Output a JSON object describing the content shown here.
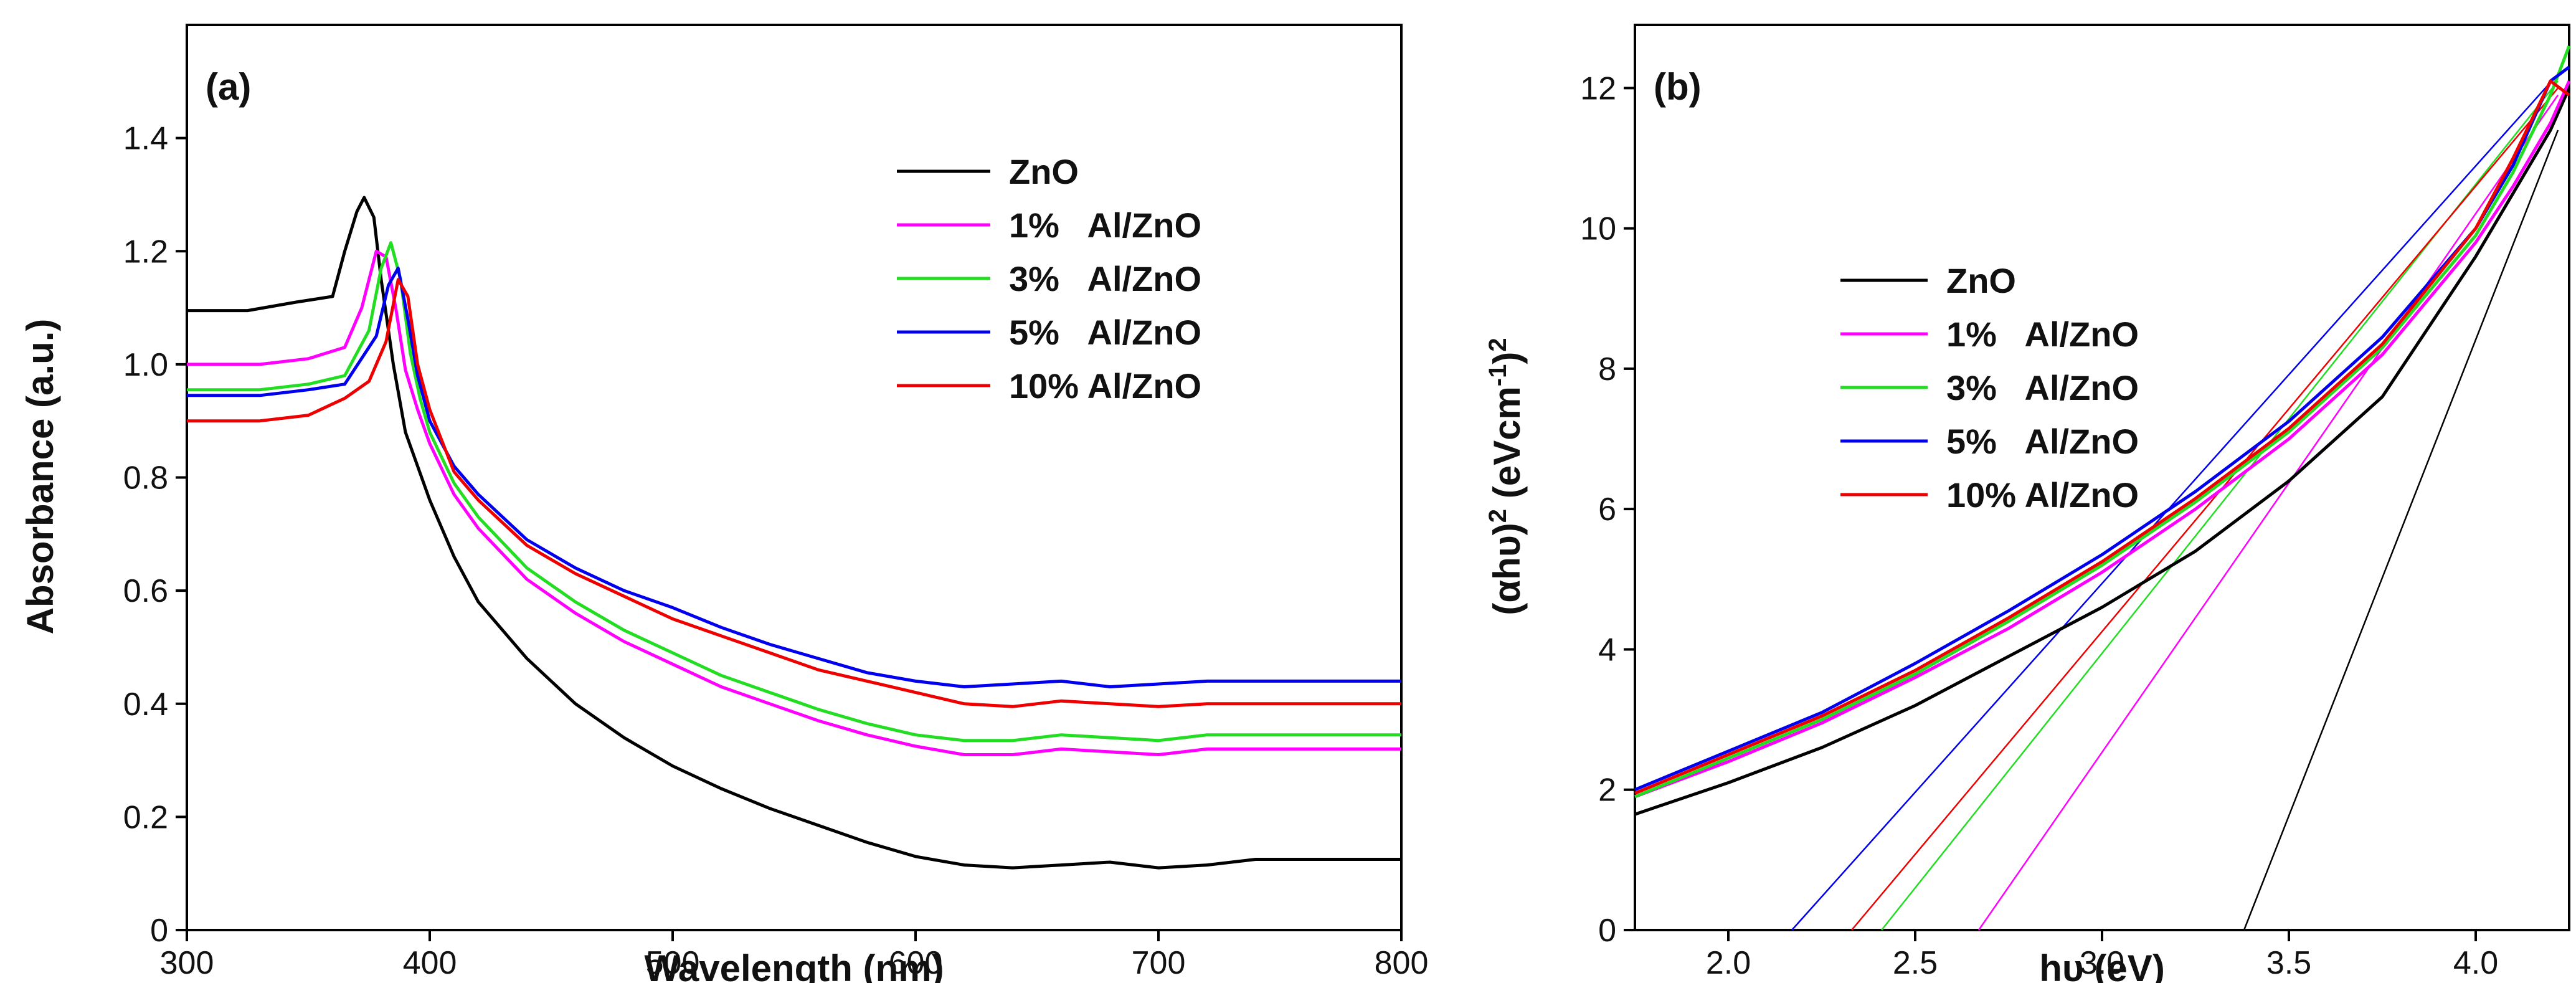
{
  "chart_data": [
    {
      "type": "line",
      "panel_label": "(a)",
      "xlabel": "Wavelength (nm)",
      "ylabel": "Absorbance (a.u.)",
      "xlim": [
        300,
        800
      ],
      "ylim": [
        0,
        1.6
      ],
      "xticks": [
        300,
        400,
        500,
        600,
        700,
        800
      ],
      "xtick_labels": [
        "300",
        "400",
        "500",
        "600",
        "700",
        "800"
      ],
      "yticks": [
        0,
        0.2,
        0.4,
        0.6,
        0.8,
        1.0,
        1.2,
        1.4
      ],
      "ytick_labels": [
        "0",
        "0.2",
        "0.4",
        "0.6",
        "0.8",
        "1.0",
        "1.2",
        "1.4"
      ],
      "legend_position": "top-right",
      "series": [
        {
          "name": "ZnO",
          "color": "#000000",
          "x": [
            300,
            325,
            345,
            360,
            365,
            370,
            373,
            377,
            380,
            385,
            390,
            395,
            400,
            410,
            420,
            440,
            460,
            480,
            500,
            520,
            540,
            560,
            580,
            600,
            620,
            640,
            660,
            680,
            700,
            720,
            740,
            760,
            780,
            800
          ],
          "y": [
            1.095,
            1.095,
            1.11,
            1.12,
            1.2,
            1.27,
            1.295,
            1.26,
            1.15,
            1.0,
            0.88,
            0.82,
            0.76,
            0.66,
            0.58,
            0.48,
            0.4,
            0.34,
            0.29,
            0.25,
            0.215,
            0.185,
            0.155,
            0.13,
            0.115,
            0.11,
            0.115,
            0.12,
            0.11,
            0.115,
            0.125,
            0.125,
            0.125,
            0.125
          ]
        },
        {
          "name": "1%   Al/ZnO",
          "color": "#ff00ff",
          "x": [
            300,
            330,
            350,
            365,
            372,
            378,
            382,
            386,
            390,
            395,
            400,
            410,
            420,
            440,
            460,
            480,
            500,
            520,
            540,
            560,
            580,
            600,
            620,
            640,
            660,
            680,
            700,
            720,
            740,
            760,
            780,
            800
          ],
          "y": [
            1.0,
            1.0,
            1.01,
            1.03,
            1.1,
            1.2,
            1.19,
            1.1,
            0.99,
            0.92,
            0.86,
            0.77,
            0.71,
            0.62,
            0.56,
            0.51,
            0.47,
            0.43,
            0.4,
            0.37,
            0.345,
            0.325,
            0.31,
            0.31,
            0.32,
            0.315,
            0.31,
            0.32,
            0.32,
            0.32,
            0.32,
            0.32
          ]
        },
        {
          "name": "3%   Al/ZnO",
          "color": "#22dd22",
          "x": [
            300,
            330,
            350,
            365,
            375,
            380,
            384,
            388,
            392,
            396,
            400,
            410,
            420,
            440,
            460,
            480,
            500,
            520,
            540,
            560,
            580,
            600,
            620,
            640,
            660,
            680,
            700,
            720,
            740,
            760,
            780,
            800
          ],
          "y": [
            0.955,
            0.955,
            0.965,
            0.98,
            1.06,
            1.17,
            1.215,
            1.15,
            1.02,
            0.94,
            0.88,
            0.79,
            0.73,
            0.64,
            0.58,
            0.53,
            0.49,
            0.45,
            0.42,
            0.39,
            0.365,
            0.345,
            0.335,
            0.335,
            0.345,
            0.34,
            0.335,
            0.345,
            0.345,
            0.345,
            0.345,
            0.345
          ]
        },
        {
          "name": "5%   Al/ZnO",
          "color": "#0000ee",
          "x": [
            300,
            330,
            350,
            365,
            378,
            383,
            387,
            391,
            395,
            400,
            410,
            420,
            440,
            460,
            480,
            500,
            520,
            540,
            560,
            580,
            600,
            620,
            640,
            660,
            680,
            700,
            720,
            740,
            760,
            780,
            800
          ],
          "y": [
            0.945,
            0.945,
            0.955,
            0.965,
            1.05,
            1.14,
            1.17,
            1.08,
            0.98,
            0.9,
            0.82,
            0.77,
            0.69,
            0.64,
            0.6,
            0.57,
            0.535,
            0.505,
            0.48,
            0.455,
            0.44,
            0.43,
            0.435,
            0.44,
            0.43,
            0.435,
            0.44,
            0.44,
            0.44,
            0.44,
            0.44
          ]
        },
        {
          "name": "10% Al/ZnO",
          "color": "#ee0000",
          "x": [
            300,
            330,
            350,
            365,
            375,
            382,
            387,
            391,
            395,
            400,
            410,
            420,
            440,
            460,
            480,
            500,
            520,
            540,
            560,
            580,
            600,
            620,
            640,
            660,
            680,
            700,
            720,
            740,
            760,
            780,
            800
          ],
          "y": [
            0.9,
            0.9,
            0.91,
            0.94,
            0.97,
            1.04,
            1.15,
            1.12,
            1.0,
            0.92,
            0.81,
            0.76,
            0.68,
            0.63,
            0.59,
            0.55,
            0.52,
            0.49,
            0.46,
            0.44,
            0.42,
            0.4,
            0.395,
            0.405,
            0.4,
            0.395,
            0.4,
            0.4,
            0.4,
            0.4,
            0.4
          ]
        }
      ]
    },
    {
      "type": "line",
      "panel_label": "(b)",
      "xlabel": "hυ (eV)",
      "ylabel_parts": [
        "(αhυ)",
        "2",
        " (eVcm",
        "-1",
        ")",
        "2"
      ],
      "xlim": [
        1.75,
        4.25
      ],
      "ylim": [
        0,
        12.9
      ],
      "xticks": [
        2.0,
        2.5,
        3.0,
        3.5,
        4.0
      ],
      "xtick_labels": [
        "2.0",
        "2.5",
        "3.0",
        "3.5",
        "4.0"
      ],
      "yticks": [
        0,
        2,
        4,
        6,
        8,
        10,
        12
      ],
      "ytick_labels": [
        "0",
        "2",
        "4",
        "6",
        "8",
        "10",
        "12"
      ],
      "legend_position": "top-left",
      "series": [
        {
          "name": "ZnO",
          "color": "#000000",
          "x": [
            1.75,
            2.0,
            2.25,
            2.5,
            2.75,
            3.0,
            3.25,
            3.5,
            3.75,
            4.0,
            4.1,
            4.2,
            4.25
          ],
          "y": [
            1.65,
            2.1,
            2.6,
            3.2,
            3.9,
            4.6,
            5.4,
            6.4,
            7.6,
            9.6,
            10.5,
            11.4,
            12.0
          ]
        },
        {
          "name": "1%   Al/ZnO",
          "color": "#ff00ff",
          "x": [
            1.75,
            2.0,
            2.25,
            2.5,
            2.75,
            3.0,
            3.25,
            3.5,
            3.75,
            4.0,
            4.1,
            4.2,
            4.25
          ],
          "y": [
            1.9,
            2.4,
            2.95,
            3.6,
            4.3,
            5.1,
            6.0,
            7.0,
            8.2,
            9.8,
            10.6,
            11.5,
            12.1
          ]
        },
        {
          "name": "3%   Al/ZnO",
          "color": "#22dd22",
          "x": [
            1.75,
            2.0,
            2.25,
            2.5,
            2.75,
            3.0,
            3.25,
            3.5,
            3.75,
            4.0,
            4.1,
            4.2,
            4.25
          ],
          "y": [
            1.9,
            2.45,
            3.0,
            3.65,
            4.4,
            5.2,
            6.1,
            7.1,
            8.3,
            9.9,
            10.8,
            11.9,
            12.6
          ]
        },
        {
          "name": "5%   Al/ZnO",
          "color": "#0000ee",
          "x": [
            1.75,
            2.0,
            2.25,
            2.5,
            2.75,
            3.0,
            3.25,
            3.5,
            3.75,
            4.0,
            4.1,
            4.2,
            4.25
          ],
          "y": [
            2.0,
            2.55,
            3.1,
            3.8,
            4.55,
            5.35,
            6.25,
            7.25,
            8.45,
            10.0,
            10.9,
            12.1,
            12.3
          ]
        },
        {
          "name": "10% Al/ZnO",
          "color": "#ee0000",
          "x": [
            1.75,
            2.0,
            2.25,
            2.5,
            2.75,
            3.0,
            3.25,
            3.5,
            3.75,
            4.0,
            4.1,
            4.2,
            4.25
          ],
          "y": [
            1.95,
            2.5,
            3.05,
            3.7,
            4.45,
            5.25,
            6.15,
            7.15,
            8.35,
            10.0,
            11.0,
            12.1,
            11.9
          ]
        }
      ],
      "tangent_fits": [
        {
          "name": "ZnO",
          "color": "#000000",
          "x": [
            3.38,
            4.22
          ],
          "y": [
            0,
            11.4
          ]
        },
        {
          "name": "1%   Al/ZnO",
          "color": "#ff00ff",
          "x": [
            2.67,
            4.22
          ],
          "y": [
            0,
            11.9
          ]
        },
        {
          "name": "3%   Al/ZnO",
          "color": "#22dd22",
          "x": [
            2.41,
            4.22
          ],
          "y": [
            0,
            12.1
          ]
        },
        {
          "name": "5%   Al/ZnO",
          "color": "#0000ee",
          "x": [
            2.17,
            4.22
          ],
          "y": [
            0,
            12.2
          ]
        },
        {
          "name": "10% Al/ZnO",
          "color": "#ee0000",
          "x": [
            2.33,
            4.22
          ],
          "y": [
            0,
            12.0
          ]
        }
      ]
    }
  ]
}
